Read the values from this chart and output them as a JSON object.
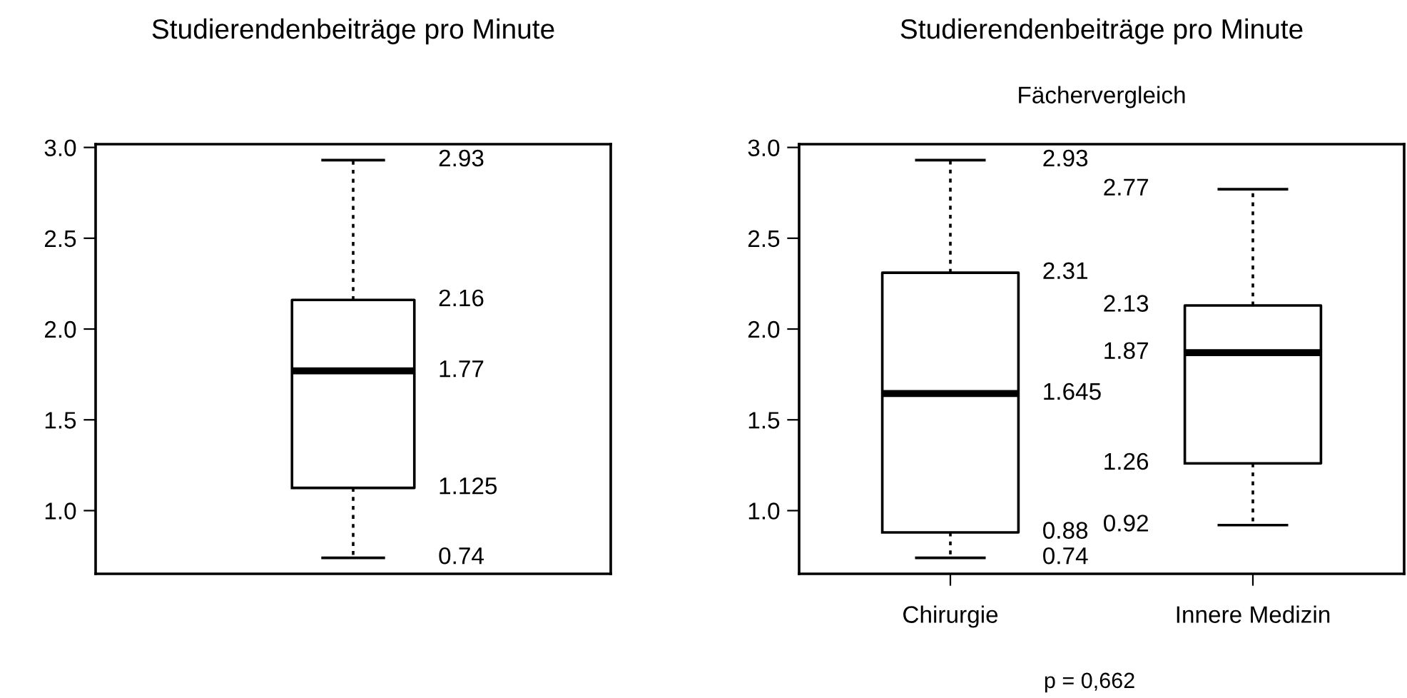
{
  "chart_data": [
    {
      "type": "box",
      "title": "Studierendenbeiträge pro Minute",
      "categories": [
        null
      ],
      "boxes": [
        {
          "low": 0.74,
          "q1": 1.125,
          "median": 1.77,
          "q3": 2.16,
          "high": 2.93
        }
      ],
      "ylim": [
        0.652,
        3.018
      ],
      "yticks": [
        {
          "value": 1.0,
          "label": "1.0"
        },
        {
          "value": 1.5,
          "label": "1.5"
        },
        {
          "value": 2.0,
          "label": "2.0"
        },
        {
          "value": 2.5,
          "label": "2.5"
        },
        {
          "value": 3.0,
          "label": "3.0"
        }
      ],
      "annotations": [
        "2.93",
        "2.16",
        "1.77",
        "1.125",
        "0.74"
      ]
    },
    {
      "type": "box",
      "title": "Studierendenbeiträge pro Minute",
      "subtitle": "Fächervergleich",
      "categories": [
        "Chirurgie",
        "Innere Medizin"
      ],
      "boxes": [
        {
          "low": 0.74,
          "q1": 0.88,
          "median": 1.645,
          "q3": 2.31,
          "high": 2.93
        },
        {
          "low": 0.92,
          "q1": 1.26,
          "median": 1.87,
          "q3": 2.13,
          "high": 2.77
        }
      ],
      "ylim": [
        0.652,
        3.018
      ],
      "yticks": [
        {
          "value": 1.0,
          "label": "1.0"
        },
        {
          "value": 1.5,
          "label": "1.5"
        },
        {
          "value": 2.0,
          "label": "2.0"
        },
        {
          "value": 2.5,
          "label": "2.5"
        },
        {
          "value": 3.0,
          "label": "3.0"
        }
      ],
      "annotations": [
        "2.93",
        "2.31",
        "1.645",
        "0.88",
        "0.74",
        "2.77",
        "2.13",
        "1.87",
        "1.26",
        "0.92",
        "p = 0,662"
      ]
    }
  ]
}
